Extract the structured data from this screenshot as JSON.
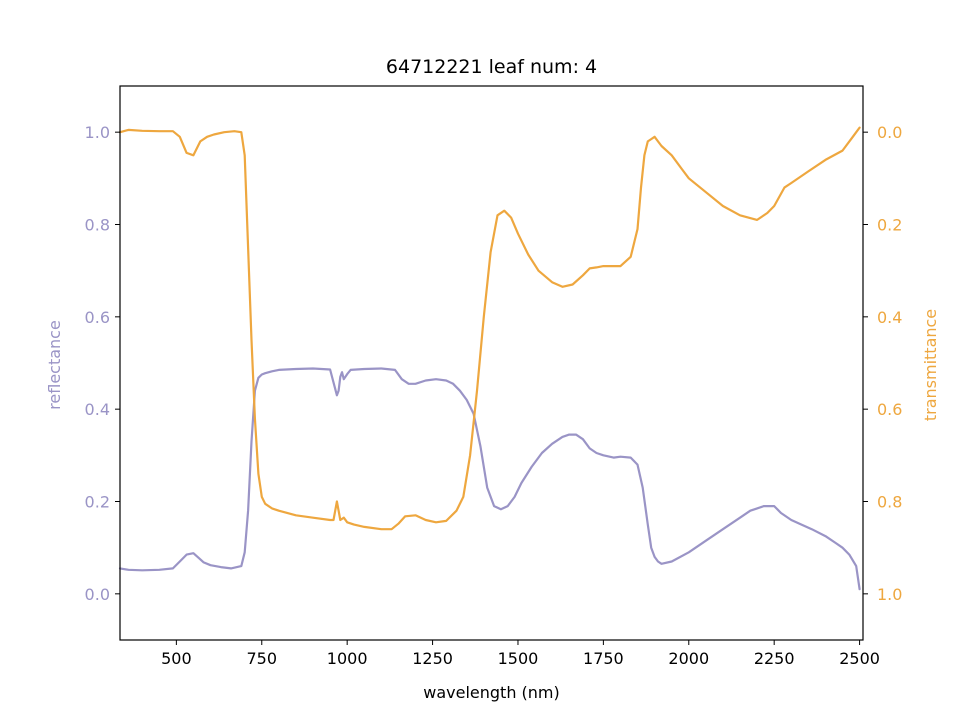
{
  "chart_data": {
    "type": "line",
    "title": "64712221 leaf num: 4",
    "xlabel": "wavelength (nm)",
    "ylabel_left": "reflectance",
    "ylabel_right": "transmittance",
    "xlim": [
      335,
      2510
    ],
    "ylim_left": [
      -0.1,
      1.1
    ],
    "ylim_right": [
      1.1,
      -0.1
    ],
    "right_axis_inverted": true,
    "grid": false,
    "x_ticks": [
      500,
      750,
      1000,
      1250,
      1500,
      1750,
      2000,
      2250,
      2500
    ],
    "y_ticks_left": [
      0.0,
      0.2,
      0.4,
      0.6,
      0.8,
      1.0
    ],
    "y_ticks_right": [
      0.0,
      0.2,
      0.4,
      0.6,
      0.8,
      1.0
    ],
    "series": [
      {
        "axis": "left",
        "color": "#9a94c6",
        "x": [
          335,
          360,
          400,
          450,
          490,
          510,
          530,
          550,
          565,
          580,
          600,
          630,
          660,
          690,
          700,
          710,
          720,
          730,
          740,
          750,
          760,
          780,
          800,
          850,
          900,
          950,
          970,
          975,
          980,
          985,
          990,
          1000,
          1010,
          1050,
          1100,
          1140,
          1160,
          1180,
          1200,
          1230,
          1260,
          1290,
          1310,
          1330,
          1350,
          1370,
          1390,
          1410,
          1430,
          1450,
          1470,
          1490,
          1510,
          1540,
          1570,
          1600,
          1630,
          1650,
          1670,
          1690,
          1710,
          1730,
          1750,
          1780,
          1800,
          1830,
          1850,
          1865,
          1880,
          1890,
          1900,
          1910,
          1920,
          1950,
          2000,
          2050,
          2100,
          2150,
          2180,
          2200,
          2220,
          2250,
          2270,
          2300,
          2330,
          2360,
          2400,
          2430,
          2450,
          2470,
          2490,
          2500
        ],
        "y": [
          0.055,
          0.052,
          0.051,
          0.052,
          0.055,
          0.07,
          0.085,
          0.088,
          0.078,
          0.068,
          0.062,
          0.058,
          0.055,
          0.06,
          0.09,
          0.18,
          0.33,
          0.44,
          0.468,
          0.475,
          0.478,
          0.482,
          0.485,
          0.487,
          0.488,
          0.486,
          0.43,
          0.44,
          0.47,
          0.48,
          0.465,
          0.476,
          0.485,
          0.487,
          0.488,
          0.485,
          0.465,
          0.455,
          0.455,
          0.462,
          0.465,
          0.462,
          0.455,
          0.44,
          0.42,
          0.39,
          0.32,
          0.23,
          0.19,
          0.183,
          0.19,
          0.21,
          0.24,
          0.275,
          0.305,
          0.325,
          0.34,
          0.345,
          0.345,
          0.335,
          0.315,
          0.305,
          0.3,
          0.295,
          0.297,
          0.295,
          0.28,
          0.23,
          0.15,
          0.1,
          0.08,
          0.07,
          0.065,
          0.07,
          0.09,
          0.115,
          0.14,
          0.165,
          0.18,
          0.185,
          0.19,
          0.19,
          0.175,
          0.16,
          0.15,
          0.14,
          0.125,
          0.11,
          0.1,
          0.085,
          0.06,
          0.01
        ]
      },
      {
        "axis": "right",
        "color": "#eea73f",
        "x": [
          335,
          360,
          400,
          450,
          490,
          510,
          530,
          550,
          570,
          590,
          610,
          640,
          670,
          690,
          700,
          710,
          720,
          730,
          740,
          750,
          760,
          780,
          800,
          850,
          900,
          950,
          960,
          970,
          975,
          980,
          990,
          1000,
          1020,
          1050,
          1100,
          1130,
          1150,
          1170,
          1200,
          1230,
          1260,
          1290,
          1320,
          1340,
          1360,
          1380,
          1400,
          1420,
          1440,
          1460,
          1480,
          1500,
          1530,
          1560,
          1600,
          1630,
          1660,
          1690,
          1710,
          1730,
          1750,
          1780,
          1800,
          1830,
          1850,
          1860,
          1870,
          1880,
          1890,
          1900,
          1910,
          1920,
          1950,
          1980,
          2000,
          2050,
          2100,
          2150,
          2200,
          2230,
          2250,
          2280,
          2300,
          2350,
          2400,
          2450,
          2480,
          2500
        ],
        "y": [
          0.0,
          -0.005,
          -0.003,
          -0.002,
          -0.002,
          0.01,
          0.045,
          0.05,
          0.02,
          0.01,
          0.005,
          0.0,
          -0.002,
          0.0,
          0.05,
          0.25,
          0.45,
          0.62,
          0.74,
          0.79,
          0.805,
          0.815,
          0.82,
          0.83,
          0.835,
          0.84,
          0.84,
          0.8,
          0.82,
          0.84,
          0.835,
          0.845,
          0.85,
          0.855,
          0.86,
          0.86,
          0.848,
          0.832,
          0.83,
          0.84,
          0.845,
          0.842,
          0.82,
          0.79,
          0.7,
          0.56,
          0.4,
          0.26,
          0.18,
          0.17,
          0.185,
          0.22,
          0.265,
          0.3,
          0.325,
          0.335,
          0.33,
          0.31,
          0.295,
          0.293,
          0.29,
          0.29,
          0.29,
          0.27,
          0.21,
          0.12,
          0.05,
          0.02,
          0.015,
          0.01,
          0.02,
          0.03,
          0.05,
          0.08,
          0.1,
          0.13,
          0.16,
          0.18,
          0.19,
          0.175,
          0.16,
          0.12,
          0.11,
          0.085,
          0.06,
          0.04,
          0.01,
          -0.01
        ]
      }
    ]
  }
}
